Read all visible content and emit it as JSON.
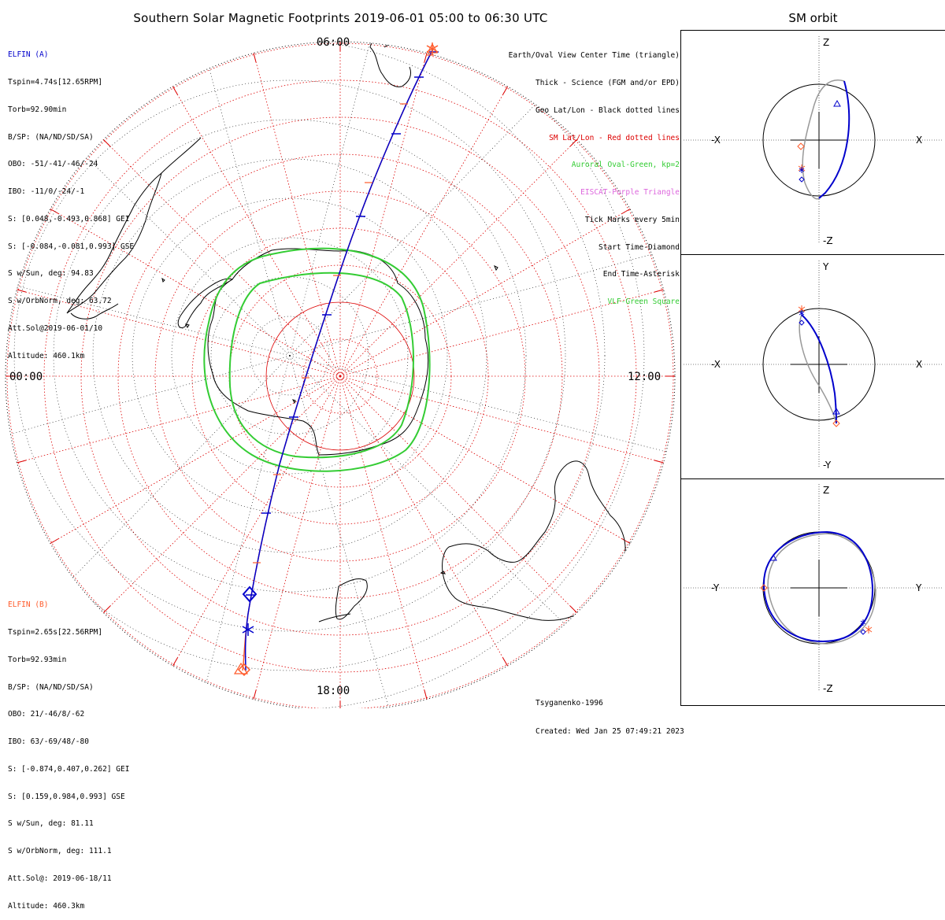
{
  "title": "Southern Solar Magnetic Footprints 2019-06-01 05:00 to 06:30 UTC",
  "side_title": "SM orbit",
  "elfin_a": {
    "name": "ELFIN (A)",
    "color": "#0000cc",
    "lines": [
      "Tspin=4.74s[12.65RPM]",
      "Torb=92.90min",
      "B/SP: (NA/ND/SD/SA)",
      "OBO: -51/-41/-46/-24",
      "IBO: -11/0/-24/-1",
      "S: [0.048,-0.493,0.868] GEI",
      "S: [-0.084,-0.081,0.993] GSE",
      "S w/Sun, deg: 94.83",
      "S w/OrbNorm, deg: 63.72",
      "Att.Sol@2019-06-01/10",
      "Altitude: 460.1km"
    ]
  },
  "elfin_b": {
    "name": "ELFIN (B)",
    "color": "#ff5a2a",
    "lines": [
      "Tspin=2.65s[22.56RPM]",
      "Torb=92.93min",
      "B/SP: (NA/ND/SD/SA)",
      "OBO: 21/-46/8/-62",
      "IBO: 63/-69/48/-80",
      "S: [-0.874,0.407,0.262] GEI",
      "S: [0.159,0.984,0.993] GSE",
      "S w/Sun, deg: 81.11",
      "S w/OrbNorm, deg: 111.1",
      "Att.Sol@: 2019-06-18/11",
      "Altitude: 460.3km"
    ]
  },
  "legend": [
    {
      "text": "Earth/Oval View Center Time (triangle)",
      "color": "#000000"
    },
    {
      "text": "Thick - Science (FGM and/or EPD)",
      "color": "#000000"
    },
    {
      "text": "Geo Lat/Lon - Black dotted lines",
      "color": "#000000"
    },
    {
      "text": "SM Lat/Lon - Red dotted lines",
      "color": "#dd0000"
    },
    {
      "text": "Auroral Oval-Green, kp=2",
      "color": "#33cc33"
    },
    {
      "text": "EISCAT-Purple Triangle",
      "color": "#dd66dd"
    },
    {
      "text": "Tick Marks every 5min",
      "color": "#000000"
    },
    {
      "text": "Start Time-Diamond",
      "color": "#000000"
    },
    {
      "text": "End Time-Asterisk",
      "color": "#000000"
    },
    {
      "text": "VLF-Green Square",
      "color": "#33cc33"
    }
  ],
  "credit": [
    "Tsyganenko-1996",
    "Created: Wed Jan 25 07:49:21 2023"
  ],
  "chart_data": {
    "type": "polar-footprint-map",
    "hour_labels": {
      "top": "06:00",
      "left": "00:00",
      "right": "12:00",
      "bottom": "18:00"
    },
    "colors": {
      "sm_grid": "#dd0000",
      "geo_grid": "#000000",
      "oval": "#33cc33",
      "elfin_a": "#0000cc",
      "elfin_b": "#ff5a2a",
      "model_orbit": "#999999"
    },
    "orbit_panels": [
      {
        "id": "xz",
        "labels": {
          "left": "-X",
          "right": "X",
          "top": "Z",
          "bottom": "-Z"
        }
      },
      {
        "id": "xy",
        "labels": {
          "left": "-X",
          "right": "X",
          "top": "Y",
          "bottom": "-Y"
        }
      },
      {
        "id": "yz",
        "labels": {
          "left": "-Y",
          "right": "Y",
          "top": "Z",
          "bottom": "-Z"
        }
      }
    ]
  }
}
